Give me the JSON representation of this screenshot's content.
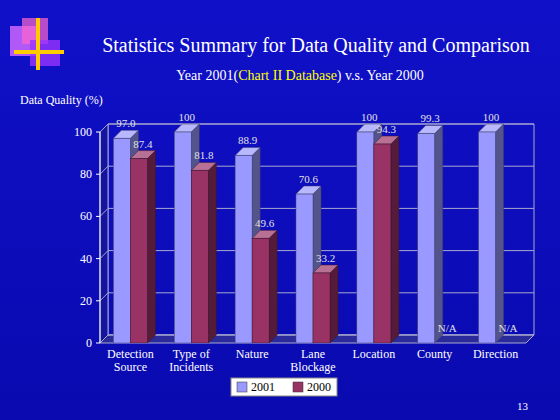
{
  "chart_data": {
    "type": "bar",
    "title": "Statistics Summary for Data Quality and Comparison",
    "subtitle": "Year 2001(Chart II Database) v.s. Year 2000",
    "y_label": "Data Quality (%)",
    "categories": [
      "Detection Source",
      "Type of Incidents",
      "Nature",
      "Lane Blockage",
      "Location",
      "County",
      "Direction"
    ],
    "series": [
      {
        "name": "2001",
        "color": "#9999ff",
        "values": [
          97.0,
          100,
          88.9,
          70.6,
          100,
          99.3,
          100
        ],
        "value_labels": [
          "97.0",
          "100",
          "88.9",
          "70.6",
          "100",
          "99.3",
          "100"
        ]
      },
      {
        "name": "2000",
        "color": "#993366",
        "values": [
          87.4,
          81.8,
          49.6,
          33.2,
          94.3,
          null,
          null
        ],
        "value_labels": [
          "87.4",
          "81.8",
          "49.6",
          "33.2",
          "94.3",
          "N/A",
          "N/A"
        ]
      }
    ],
    "ylim": [
      0,
      100
    ],
    "yticks": [
      0,
      20,
      40,
      60,
      80,
      100
    ],
    "grid": true,
    "legend": "bottom",
    "data_labels": true,
    "annotations": [
      "13"
    ]
  }
}
